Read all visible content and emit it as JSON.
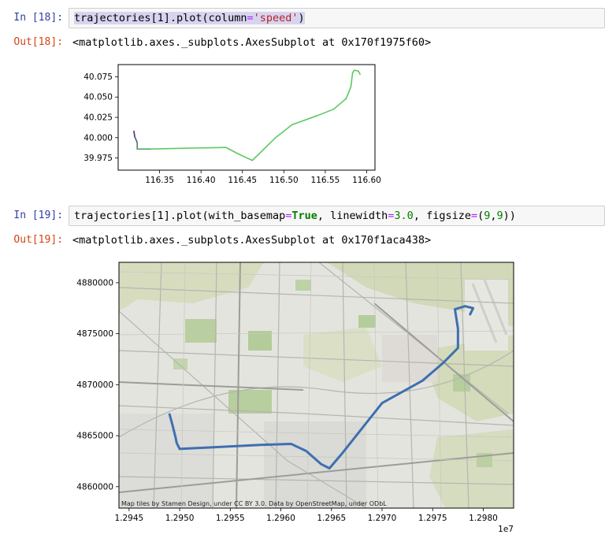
{
  "cells": [
    {
      "in_prompt": "In [18]:",
      "code": {
        "pre": "trajectories[1].plot(column",
        "eq": "=",
        "str": "'speed'",
        "post": ")"
      },
      "out_prompt": "Out[18]:",
      "out_text": "<matplotlib.axes._subplots.AxesSubplot at 0x170f1975f60>"
    },
    {
      "in_prompt": "In [19]:",
      "code": {
        "a": "trajectories[1].plot(with_basemap",
        "eq1": "=",
        "kw": "True",
        "b": ", linewidth",
        "eq2": "=",
        "n1": "3.0",
        "c": ", figsize",
        "eq3": "=",
        "d": "(",
        "n2": "9",
        "e": ",",
        "n3": "9",
        "f": "))"
      },
      "out_prompt": "Out[19]:",
      "out_text": "<matplotlib.axes._subplots.AxesSubplot at 0x170f1aca438>"
    }
  ],
  "chart_data": [
    {
      "type": "line",
      "title": "",
      "xlabel": "",
      "ylabel": "",
      "xlim": [
        116.3,
        116.61
      ],
      "ylim": [
        39.96,
        40.09
      ],
      "x_ticks": [
        "116.35",
        "116.40",
        "116.45",
        "116.50",
        "116.55",
        "116.60"
      ],
      "y_ticks": [
        "40.075",
        "40.050",
        "40.025",
        "40.000",
        "39.975"
      ],
      "series": [
        {
          "color_start": "#46327e",
          "color_end": "#5ec962",
          "points": [
            [
              116.319,
              40.008
            ],
            [
              116.32,
              40.001
            ],
            [
              116.323,
              39.994
            ],
            [
              116.323,
              39.986
            ],
            [
              116.34,
              39.986
            ],
            [
              116.38,
              39.987
            ],
            [
              116.43,
              39.988
            ],
            [
              116.445,
              39.98
            ],
            [
              116.462,
              39.972
            ],
            [
              116.475,
              39.985
            ],
            [
              116.49,
              40.0
            ],
            [
              116.51,
              40.016
            ],
            [
              116.54,
              40.027
            ],
            [
              116.56,
              40.035
            ],
            [
              116.575,
              40.048
            ],
            [
              116.578,
              40.055
            ],
            [
              116.581,
              40.063
            ],
            [
              116.583,
              40.08
            ],
            [
              116.585,
              40.083
            ],
            [
              116.59,
              40.082
            ],
            [
              116.592,
              40.078
            ]
          ]
        }
      ]
    },
    {
      "type": "line",
      "title": "",
      "xlabel": "",
      "ylabel": "",
      "x_offset_label": "1e7",
      "xlim": [
        1.2944,
        1.2983
      ],
      "ylim": [
        4857900,
        4882000
      ],
      "x_ticks": [
        "1.2945",
        "1.2950",
        "1.2955",
        "1.2960",
        "1.2965",
        "1.2970",
        "1.2975",
        "1.2980"
      ],
      "y_ticks": [
        "4880000",
        "4875000",
        "4870000",
        "4865000",
        "4860000"
      ],
      "attribution": "Map tiles by Stamen Design, under CC BY 3.0. Data by OpenStreetMap, under ODbL",
      "series": [
        {
          "color": "#3e6fb0",
          "points": [
            [
              1.2949,
              4867100
            ],
            [
              1.29493,
              4866000
            ],
            [
              1.29496,
              4864800
            ],
            [
              1.29497,
              4864300
            ],
            [
              1.295,
              4863700
            ],
            [
              1.2958,
              4864100
            ],
            [
              1.2961,
              4864200
            ],
            [
              1.29625,
              4863500
            ],
            [
              1.2964,
              4862200
            ],
            [
              1.29648,
              4861800
            ],
            [
              1.2966,
              4863200
            ],
            [
              1.297,
              4868200
            ],
            [
              1.2974,
              4870400
            ],
            [
              1.2976,
              4872100
            ],
            [
              1.29775,
              4873600
            ],
            [
              1.29775,
              4875500
            ],
            [
              1.29772,
              4877400
            ],
            [
              1.29782,
              4877700
            ],
            [
              1.2979,
              4877500
            ],
            [
              1.29787,
              4876900
            ]
          ]
        }
      ]
    }
  ]
}
